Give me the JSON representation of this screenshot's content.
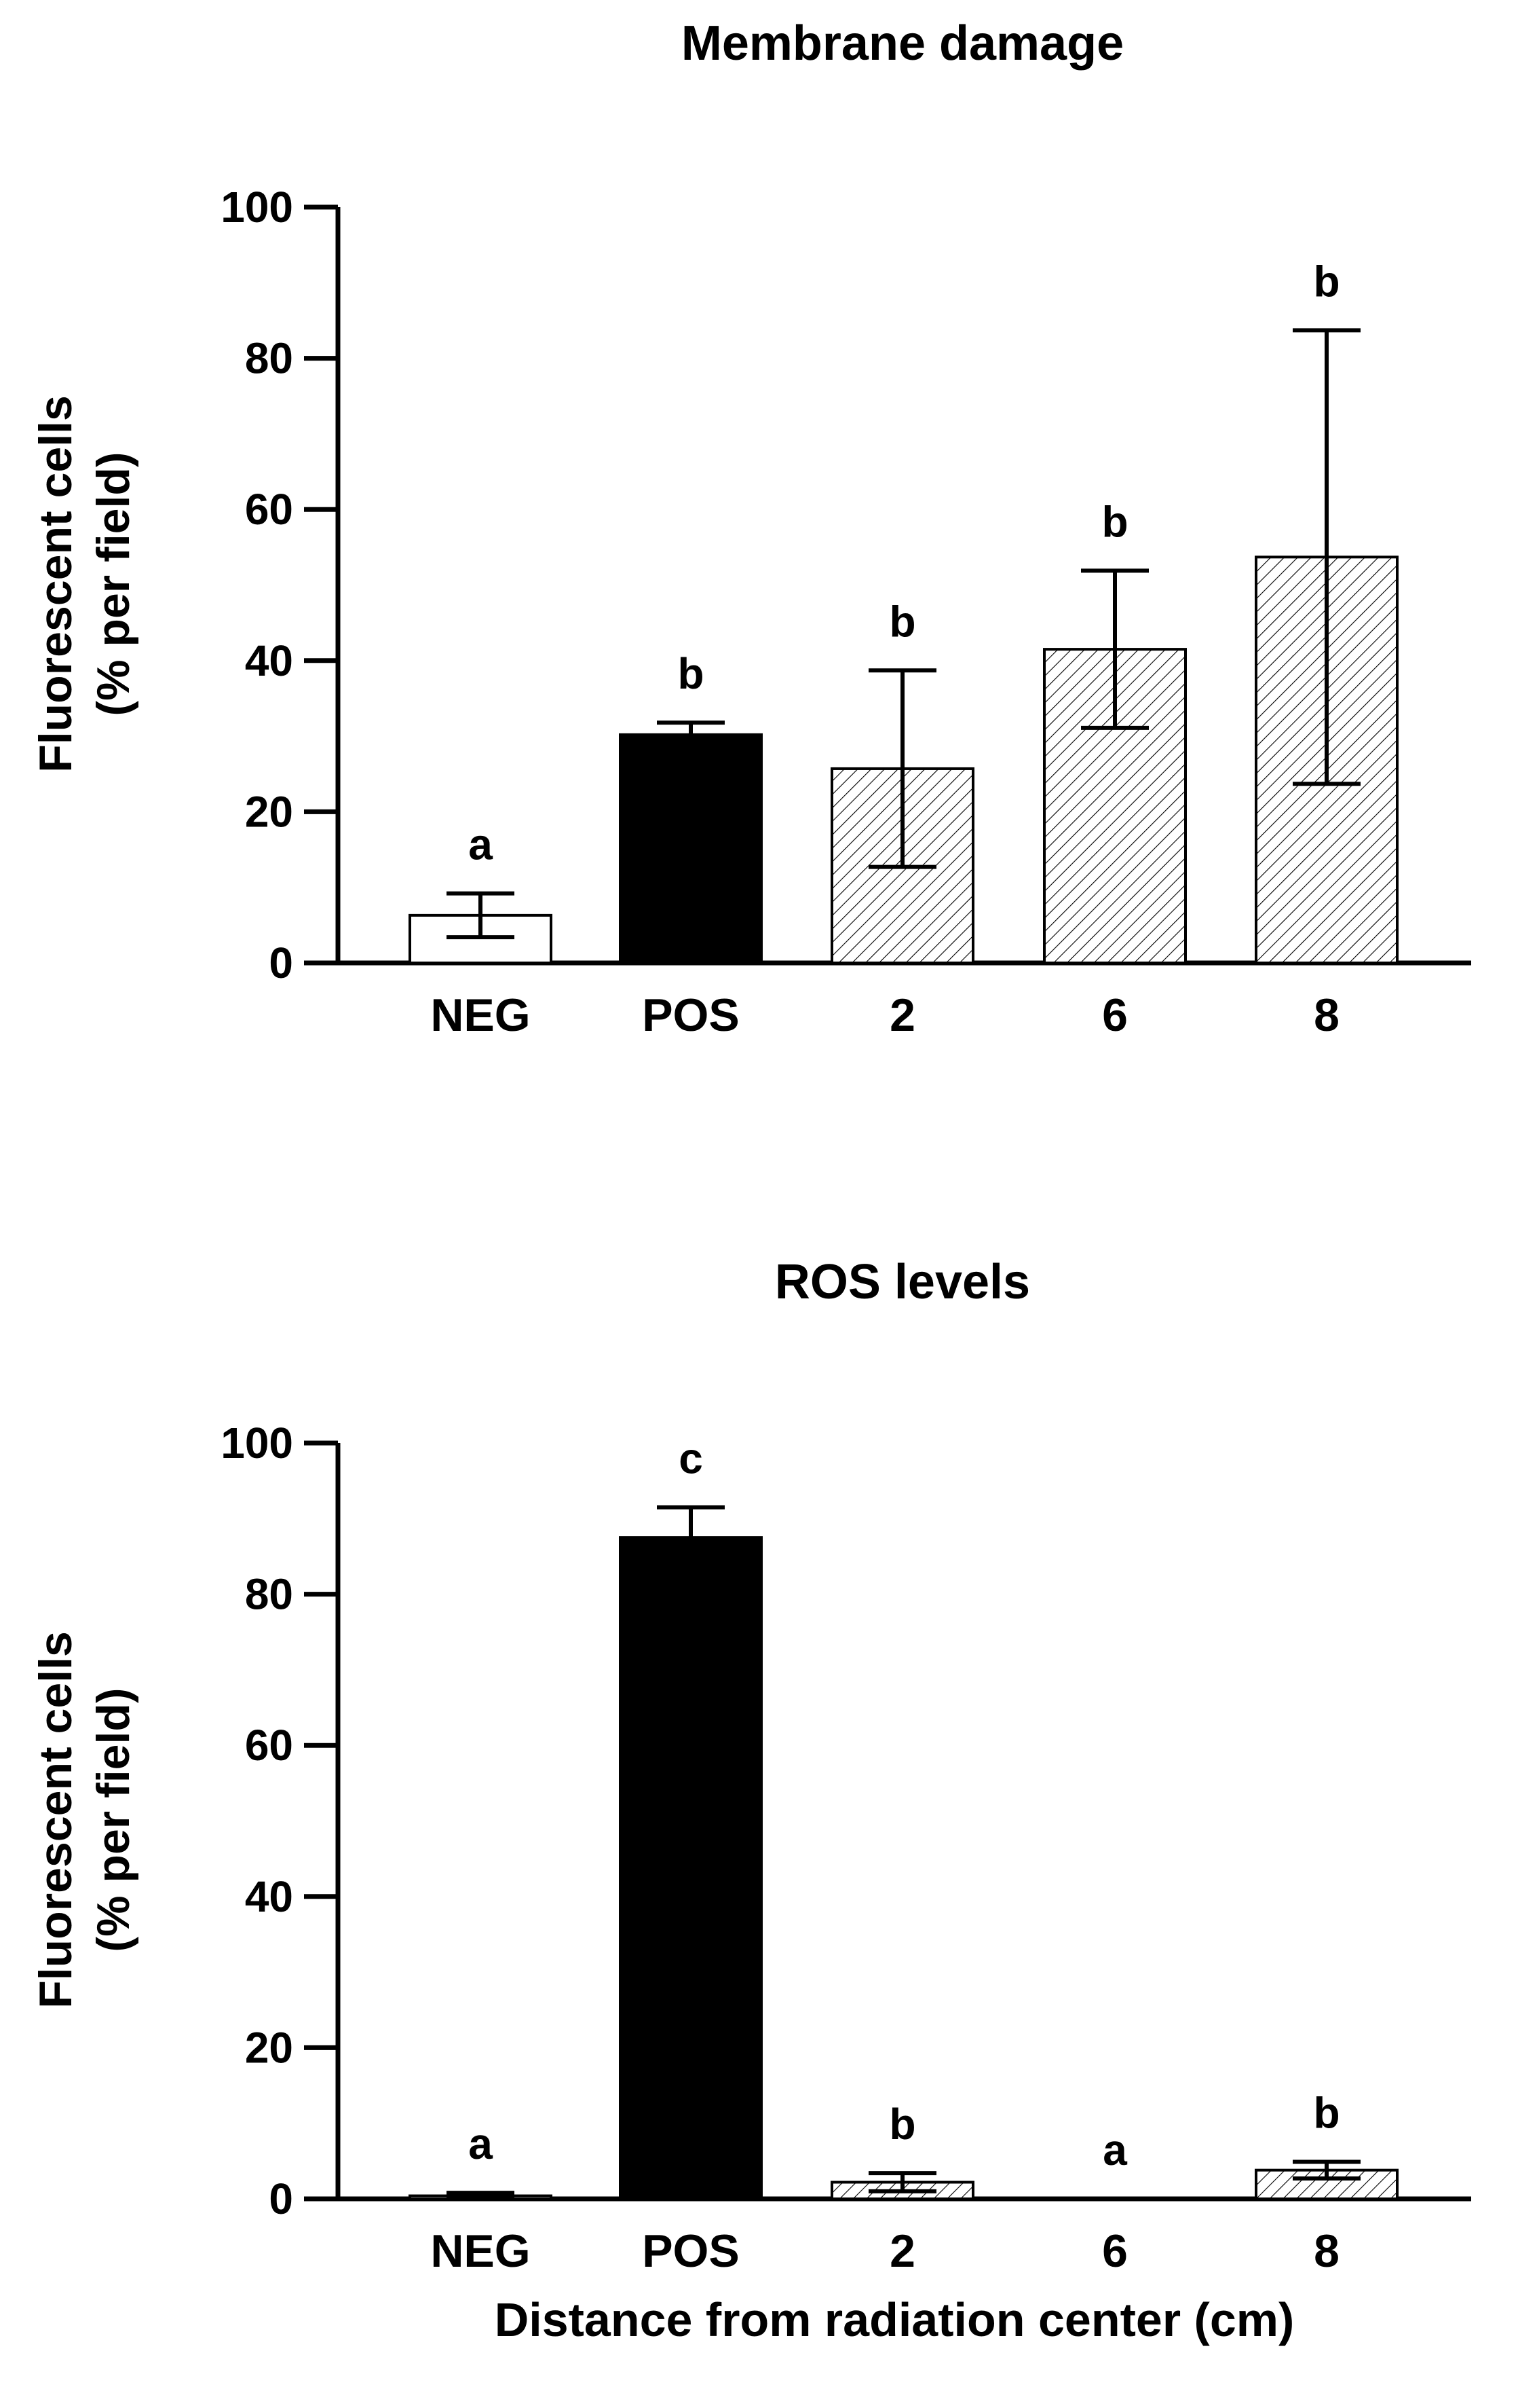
{
  "colors": {
    "axis": "#000000",
    "neg_fill": "#ffffff",
    "pos_fill": "#000000",
    "hatch": "#000000"
  },
  "chart_data": [
    {
      "id": "membrane",
      "type": "bar",
      "title": "Membrane damage",
      "ylabel_line1": "Fluorescent cells",
      "ylabel_line2": "(% per field)",
      "xlabel": "",
      "ylim": [
        0,
        100
      ],
      "yticks": [
        "0",
        "20",
        "40",
        "60",
        "80",
        "100"
      ],
      "categories": [
        "NEG",
        "POS",
        "2",
        "6",
        "8"
      ],
      "values": [
        6.3,
        30.2,
        25.7,
        41.5,
        53.7
      ],
      "errors": [
        2.9,
        1.6,
        13.0,
        10.4,
        30.0
      ],
      "letters": [
        "a",
        "b",
        "b",
        "b",
        "b"
      ],
      "styles": [
        "open",
        "solid",
        "hatched",
        "hatched",
        "hatched"
      ]
    },
    {
      "id": "ros",
      "type": "bar",
      "title": "ROS levels",
      "ylabel_line1": "Fluorescent cells",
      "ylabel_line2": "(% per field)",
      "xlabel": "Distance from radiation center (cm)",
      "ylim": [
        0,
        100
      ],
      "yticks": [
        "0",
        "20",
        "40",
        "60",
        "80",
        "100"
      ],
      "categories": [
        "NEG",
        "POS",
        "2",
        "6",
        "8"
      ],
      "values": [
        0.4,
        87.5,
        2.2,
        0.0,
        3.8
      ],
      "errors": [
        0.4,
        4.0,
        1.2,
        0.0,
        1.1
      ],
      "letters": [
        "a",
        "c",
        "b",
        "a",
        "b"
      ],
      "styles": [
        "open",
        "solid",
        "hatched",
        "hatched",
        "hatched"
      ]
    }
  ]
}
